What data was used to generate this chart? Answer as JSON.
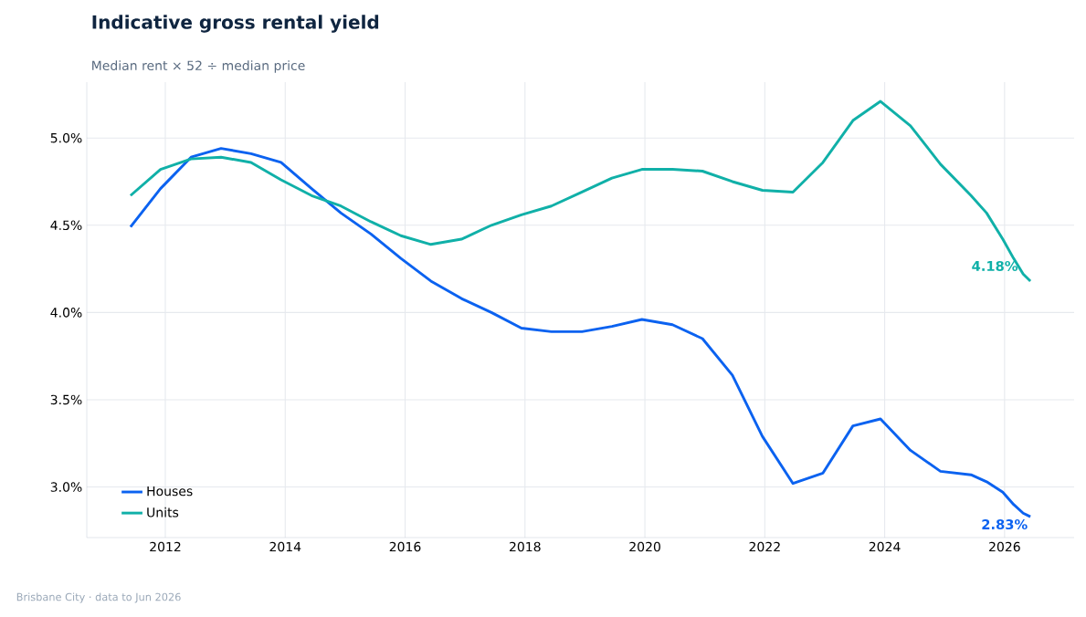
{
  "chart_data": {
    "type": "line",
    "title": "Indicative gross rental yield",
    "subtitle": "Median rent × 52 ÷ median price",
    "annotations": [
      "Brisbane City  ·  data to Jun 2026"
    ],
    "x": [
      2011.42,
      2011.92,
      2012.43,
      2012.93,
      2013.43,
      2013.93,
      2014.44,
      2014.93,
      2015.43,
      2015.93,
      2016.43,
      2016.94,
      2017.44,
      2017.94,
      2018.44,
      2018.95,
      2019.45,
      2019.95,
      2020.46,
      2020.96,
      2021.46,
      2021.96,
      2022.47,
      2022.97,
      2023.47,
      2023.93,
      2024.43,
      2024.93,
      2025.44,
      2025.7,
      2025.97,
      2026.15,
      2026.31,
      2026.43
    ],
    "series": [
      {
        "name": "Houses",
        "color": "#0b62f0",
        "values": [
          4.49,
          4.71,
          4.89,
          4.94,
          4.91,
          4.86,
          4.71,
          4.57,
          4.45,
          4.31,
          4.18,
          4.08,
          4.0,
          3.91,
          3.89,
          3.89,
          3.92,
          3.96,
          3.93,
          3.85,
          3.64,
          3.29,
          3.02,
          3.08,
          3.35,
          3.39,
          3.21,
          3.09,
          3.07,
          3.03,
          2.97,
          2.9,
          2.85,
          2.83
        ],
        "value_labels": [
          null,
          null,
          null,
          null,
          null,
          null,
          null,
          null,
          null,
          null,
          null,
          null,
          null,
          null,
          null,
          null,
          null,
          null,
          null,
          null,
          null,
          null,
          null,
          null,
          null,
          null,
          null,
          null,
          null,
          null,
          null,
          null,
          null,
          "2.83%"
        ]
      },
      {
        "name": "Units",
        "color": "#10b0a8",
        "values": [
          4.67,
          4.82,
          4.88,
          4.89,
          4.86,
          4.76,
          4.67,
          4.61,
          4.52,
          4.44,
          4.39,
          4.42,
          4.5,
          4.56,
          4.61,
          4.69,
          4.77,
          4.82,
          4.82,
          4.81,
          4.75,
          4.7,
          4.69,
          4.86,
          5.1,
          5.21,
          5.07,
          4.85,
          4.67,
          4.57,
          4.42,
          4.31,
          4.22,
          4.18
        ],
        "value_labels": [
          null,
          null,
          null,
          null,
          null,
          null,
          null,
          null,
          null,
          null,
          null,
          null,
          null,
          null,
          null,
          null,
          null,
          null,
          null,
          null,
          null,
          null,
          null,
          null,
          null,
          null,
          null,
          null,
          null,
          null,
          null,
          null,
          null,
          "4.18%"
        ]
      }
    ],
    "xlim": [
      2010.69,
      2027.16
    ],
    "ylim": [
      2.71,
      5.32
    ],
    "xticks": [
      2012,
      2014,
      2016,
      2018,
      2020,
      2022,
      2024,
      2026
    ],
    "yticks": [
      {
        "value": 3.0,
        "label": "3.0%"
      },
      {
        "value": 3.5,
        "label": "3.5%"
      },
      {
        "value": 4.0,
        "label": "4.0%"
      },
      {
        "value": 4.5,
        "label": "4.5%"
      },
      {
        "value": 5.0,
        "label": "5.0%"
      }
    ],
    "grid": true,
    "legend": "bottom left",
    "marker": "none",
    "line_style": "solid"
  }
}
